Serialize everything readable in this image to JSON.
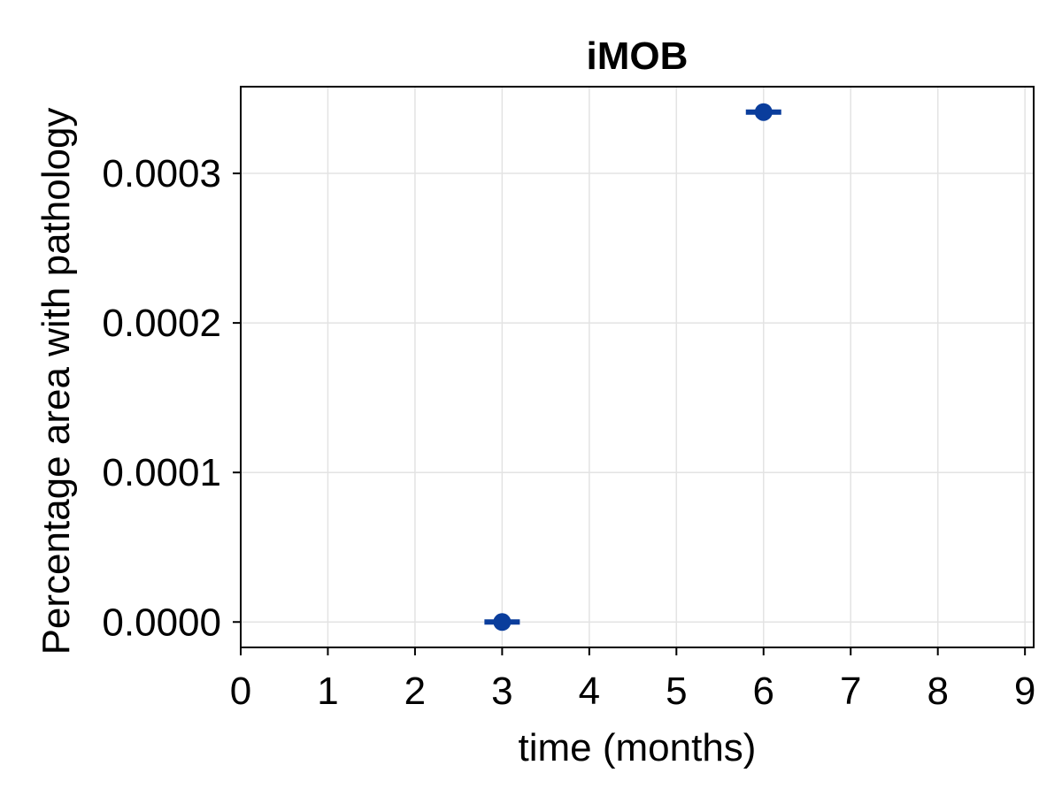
{
  "chart_data": {
    "type": "scatter",
    "title": "iMOB",
    "xlabel": "time (months)",
    "ylabel": "Percentage area with pathology",
    "xlim": [
      0,
      9.1
    ],
    "ylim": [
      -1.7e-05,
      0.000358
    ],
    "xticks": [
      0,
      1,
      2,
      3,
      4,
      5,
      6,
      7,
      8,
      9
    ],
    "xtick_labels": [
      "0",
      "1",
      "2",
      "3",
      "4",
      "5",
      "6",
      "7",
      "8",
      "9"
    ],
    "yticks": [
      0,
      0.0001,
      0.0002,
      0.0003
    ],
    "ytick_labels": [
      "0.0000",
      "0.0001",
      "0.0002",
      "0.0003"
    ],
    "grid": true,
    "legend": "none",
    "series": [
      {
        "color": "#0a3d9c",
        "x": [
          3,
          6
        ],
        "y": [
          0.0,
          0.000341
        ],
        "error_caps": true
      }
    ]
  }
}
